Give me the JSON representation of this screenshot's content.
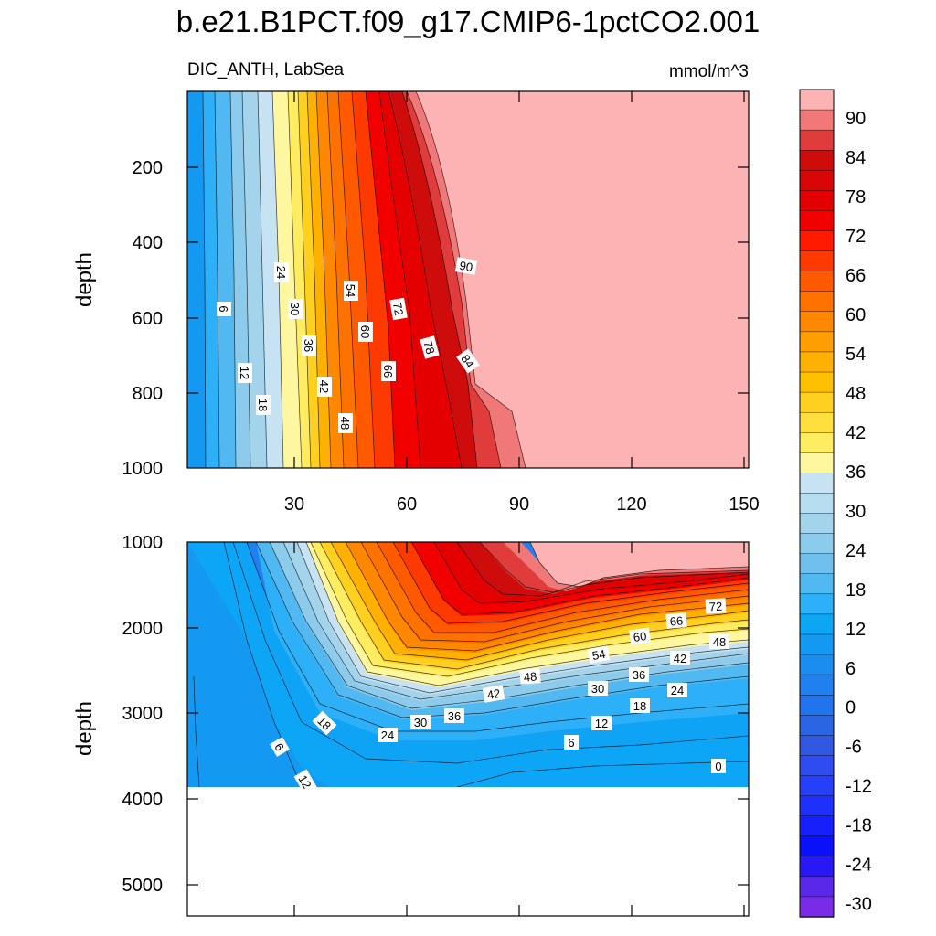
{
  "chart_data": {
    "type": "heatmap",
    "title": "b.e21.B1PCT.f09_g17.CMIP6-1pctCO2.001",
    "variable": "DIC_ANTH, LabSea",
    "units": "mmol/m^3",
    "x_ticks": [
      "30",
      "60",
      "90",
      "120",
      "150"
    ],
    "panels": [
      {
        "name": "upper",
        "ylabel": "depth",
        "ylim": [
          0,
          1000
        ],
        "xlim": [
          0,
          150
        ],
        "y_ticks": [
          "200",
          "400",
          "600",
          "800",
          "1000"
        ],
        "contour_labels": [
          "6",
          "12",
          "18",
          "24",
          "30",
          "36",
          "42",
          "48",
          "54",
          "60",
          "66",
          "72",
          "78",
          "84",
          "90"
        ]
      },
      {
        "name": "lower",
        "ylabel": "depth",
        "ylim": [
          1000,
          5400
        ],
        "xlim": [
          0,
          150
        ],
        "y_ticks": [
          "1000",
          "2000",
          "3000",
          "4000",
          "5000"
        ],
        "contour_labels": [
          "0",
          "6",
          "6",
          "12",
          "12",
          "18",
          "18",
          "24",
          "24",
          "30",
          "30",
          "36",
          "36",
          "42",
          "42",
          "48",
          "48",
          "54",
          "60",
          "66",
          "72"
        ]
      }
    ],
    "colorbar": {
      "labels": [
        "90",
        "84",
        "78",
        "72",
        "66",
        "60",
        "54",
        "48",
        "42",
        "36",
        "30",
        "24",
        "18",
        "12",
        "6",
        "0",
        "-6",
        "-12",
        "-18",
        "-24",
        "-30"
      ],
      "colors": [
        "#FDB3B3",
        "#F07878",
        "#E03C3C",
        "#CE0C0C",
        "#D80606",
        "#E40000",
        "#F20000",
        "#FF1A00",
        "#FF3A00",
        "#FF5A00",
        "#FF7200",
        "#FF8800",
        "#FF9E00",
        "#FFB000",
        "#FFC000",
        "#FFD020",
        "#FFDF40",
        "#FFEC60",
        "#FFF6A0",
        "#C7E2F2",
        "#B6DDF0",
        "#A3D4EC",
        "#8CCBEB",
        "#70C0EE",
        "#52B8F2",
        "#2DB0F7",
        "#0CA6F5",
        "#1499F2",
        "#1B8CF0",
        "#2080F0",
        "#2274EC",
        "#2A66E4",
        "#3158E0",
        "#2E4CF0",
        "#2540F8",
        "#1F30FA",
        "#1620FA",
        "#0A10FA",
        "#2818F5",
        "#5A28E8",
        "#7A2BE8"
      ]
    }
  }
}
